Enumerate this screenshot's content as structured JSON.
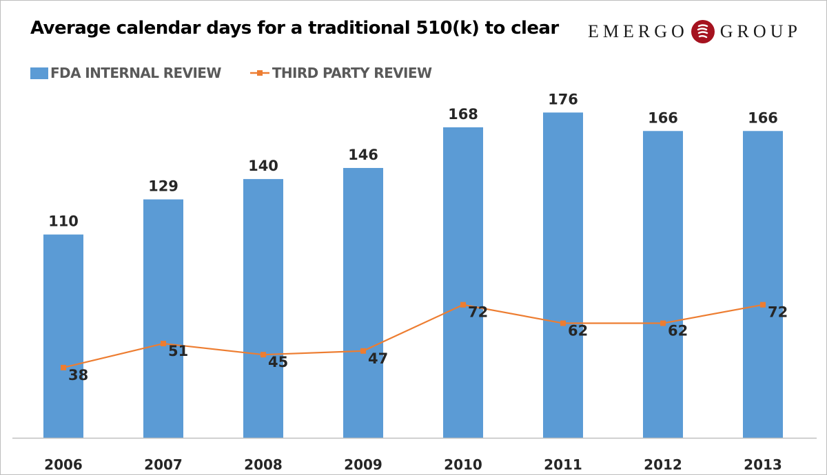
{
  "header": {
    "title": "Average calendar days for a traditional 510(k) to clear",
    "logo_left": "EMERGO",
    "logo_right": "GROUP"
  },
  "legend": {
    "items": [
      {
        "label": "FDA INTERNAL REVIEW",
        "icon": "bar-swatch-icon"
      },
      {
        "label": "THIRD PARTY REVIEW",
        "icon": "line-marker-swatch-icon"
      }
    ]
  },
  "colors": {
    "bar": "#5b9bd5",
    "line": "#ed7d31",
    "text": "#262626",
    "axis": "#bfbfbf",
    "logo_red": "#a5121f"
  },
  "chart_data": {
    "type": "bar",
    "title": "Average calendar days for a traditional 510(k) to clear",
    "xlabel": "",
    "ylabel": "",
    "ylim": [
      0,
      236
    ],
    "grid": false,
    "legend_position": "top-left",
    "categories": [
      "2006",
      "2007",
      "2008",
      "2009",
      "2010",
      "2011",
      "2012",
      "2013"
    ],
    "series": [
      {
        "name": "FDA INTERNAL REVIEW",
        "type": "bar",
        "values": [
          110,
          129,
          140,
          146,
          168,
          176,
          166,
          166
        ]
      },
      {
        "name": "THIRD PARTY REVIEW",
        "type": "line",
        "marker": "square",
        "values": [
          38,
          51,
          45,
          47,
          72,
          62,
          62,
          72
        ]
      }
    ]
  }
}
